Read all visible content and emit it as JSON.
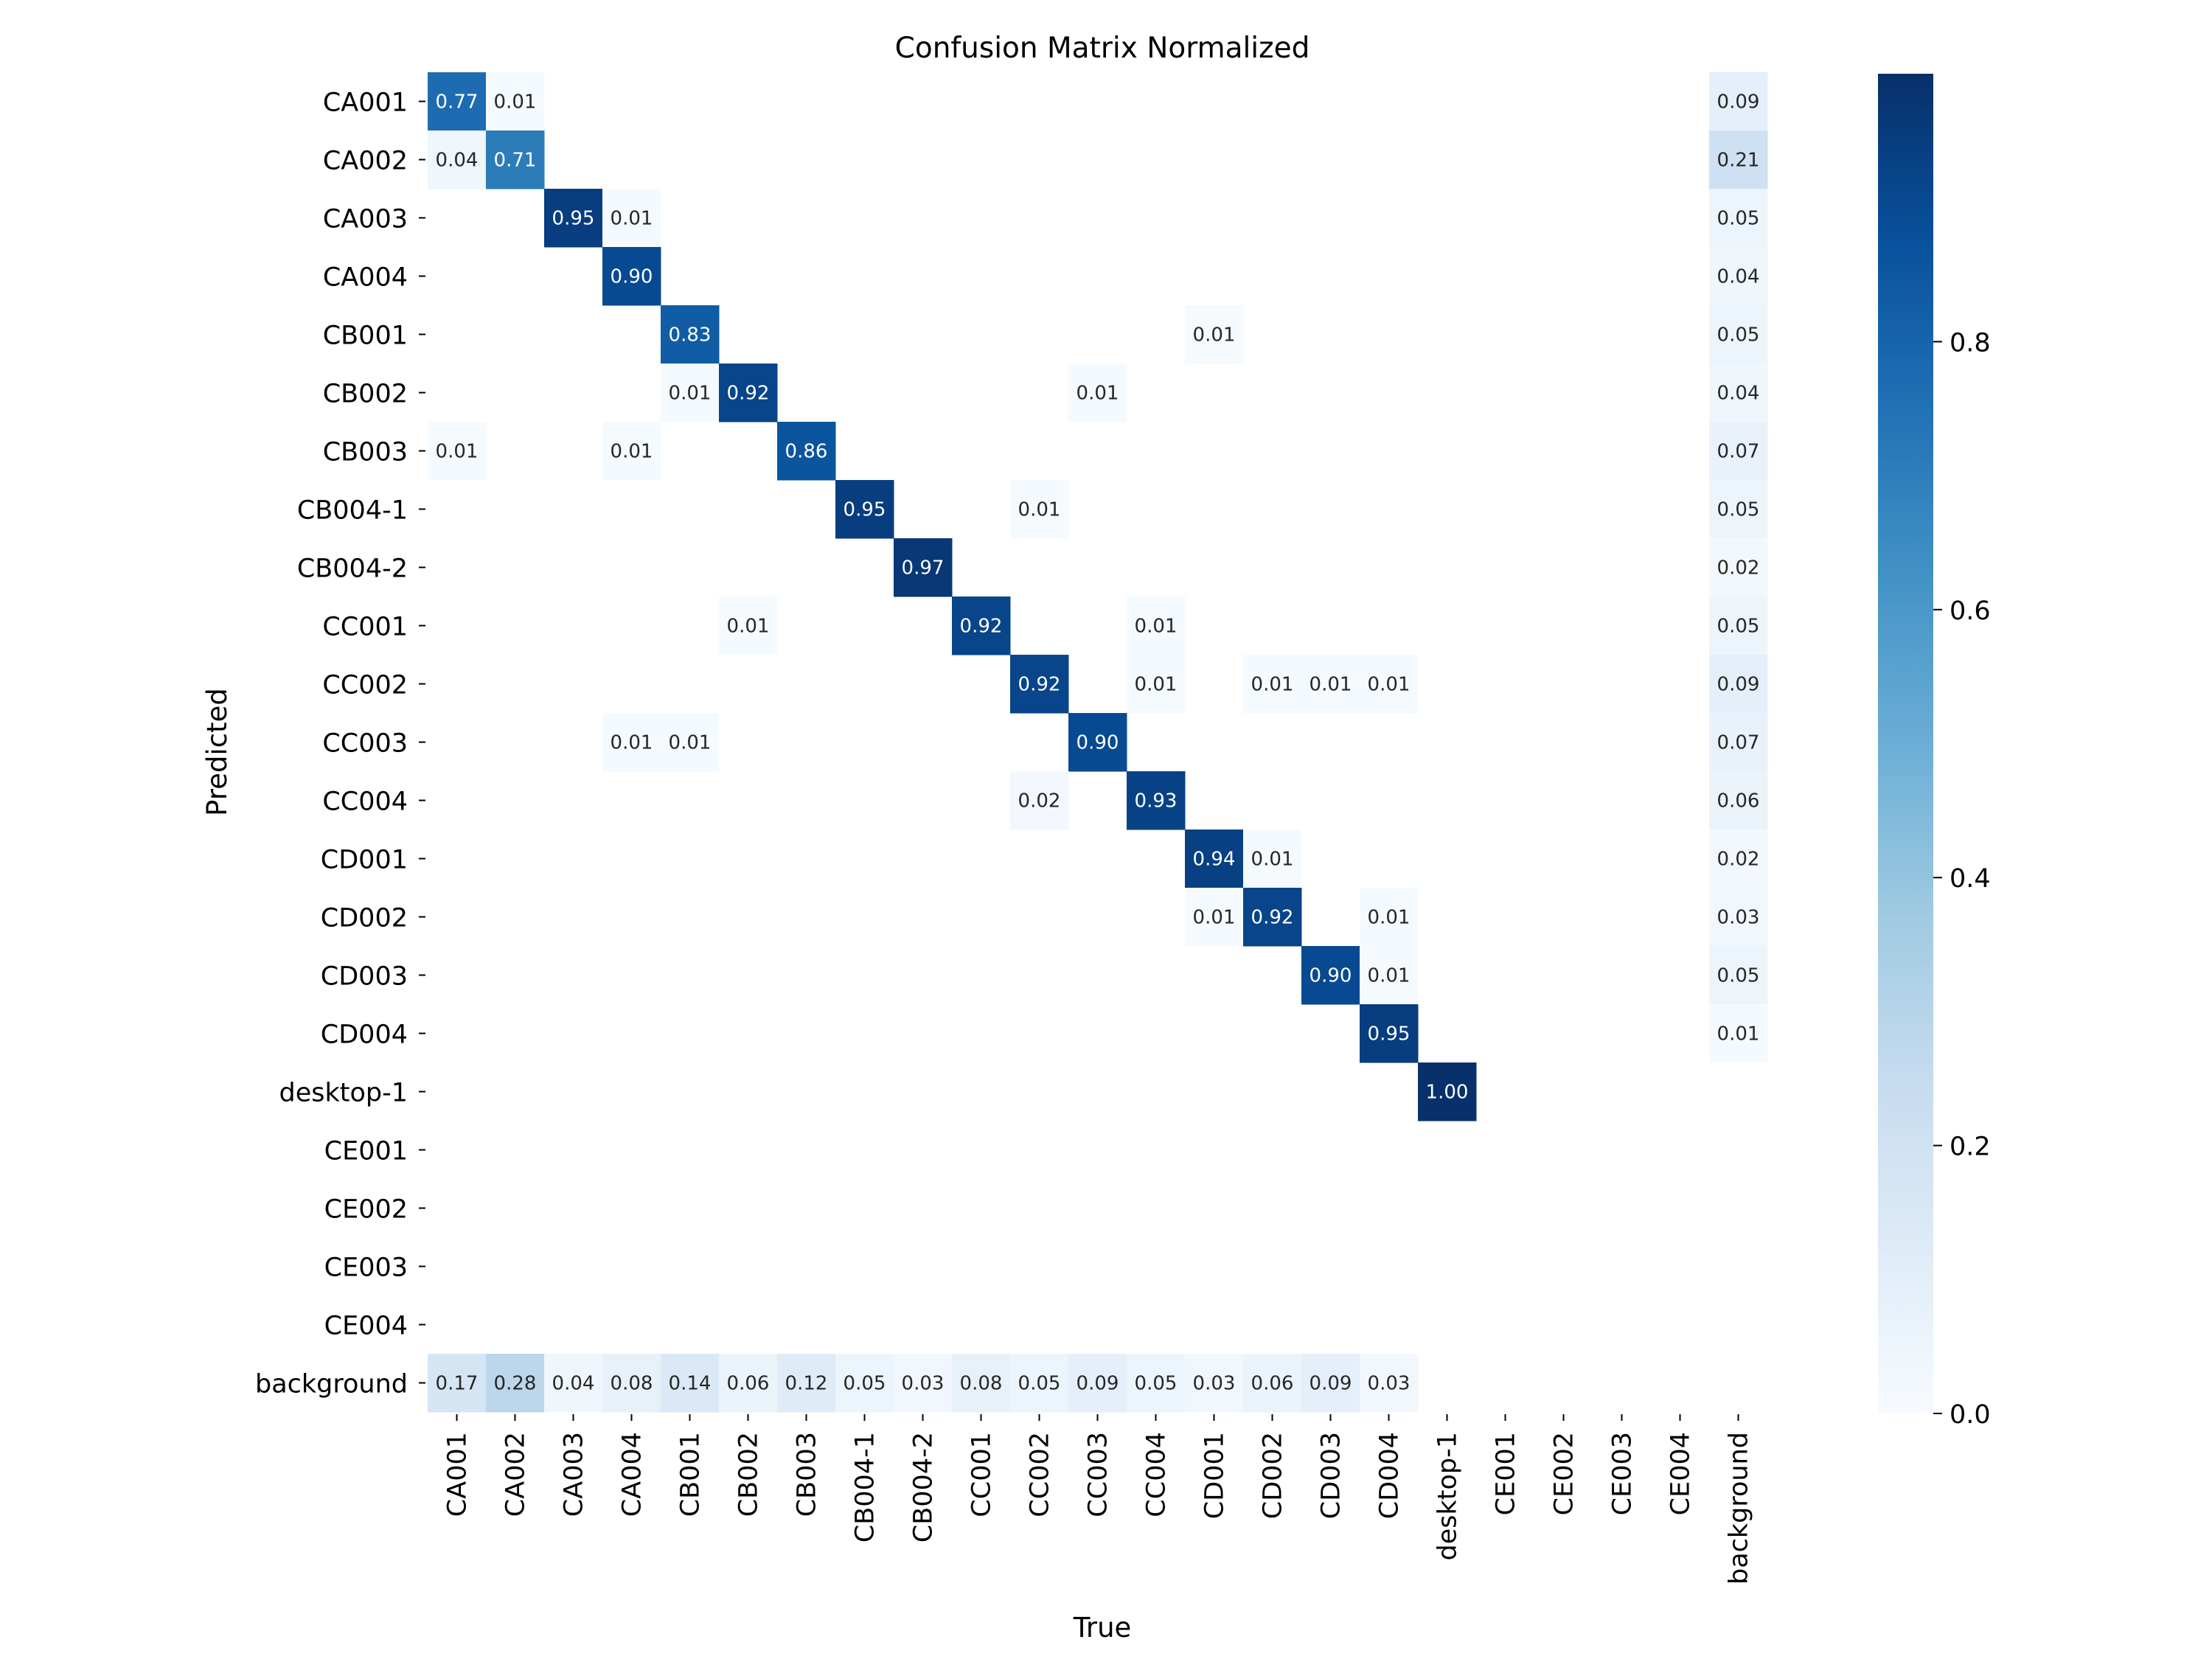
{
  "chart_data": {
    "type": "heatmap",
    "title": "Confusion Matrix Normalized",
    "xlabel": "True",
    "ylabel": "Predicted",
    "x_categories": [
      "CA001",
      "CA002",
      "CA003",
      "CA004",
      "CB001",
      "CB002",
      "CB003",
      "CB004-1",
      "CB004-2",
      "CC001",
      "CC002",
      "CC003",
      "CC004",
      "CD001",
      "CD002",
      "CD003",
      "CD004",
      "desktop-1",
      "CE001",
      "CE002",
      "CE003",
      "CE004",
      "background"
    ],
    "y_categories": [
      "CA001",
      "CA002",
      "CA003",
      "CA004",
      "CB001",
      "CB002",
      "CB003",
      "CB004-1",
      "CB004-2",
      "CC001",
      "CC002",
      "CC003",
      "CC004",
      "CD001",
      "CD002",
      "CD003",
      "CD004",
      "desktop-1",
      "CE001",
      "CE002",
      "CE003",
      "CE004",
      "background"
    ],
    "matrix": [
      [
        0.77,
        0.01,
        null,
        null,
        null,
        null,
        null,
        null,
        null,
        null,
        null,
        null,
        null,
        null,
        null,
        null,
        null,
        null,
        null,
        null,
        null,
        null,
        0.09
      ],
      [
        0.04,
        0.71,
        null,
        null,
        null,
        null,
        null,
        null,
        null,
        null,
        null,
        null,
        null,
        null,
        null,
        null,
        null,
        null,
        null,
        null,
        null,
        null,
        0.21
      ],
      [
        null,
        null,
        0.95,
        0.01,
        null,
        null,
        null,
        null,
        null,
        null,
        null,
        null,
        null,
        null,
        null,
        null,
        null,
        null,
        null,
        null,
        null,
        null,
        0.05
      ],
      [
        null,
        null,
        null,
        0.9,
        null,
        null,
        null,
        null,
        null,
        null,
        null,
        null,
        null,
        null,
        null,
        null,
        null,
        null,
        null,
        null,
        null,
        null,
        0.04
      ],
      [
        null,
        null,
        null,
        null,
        0.83,
        null,
        null,
        null,
        null,
        null,
        null,
        null,
        null,
        0.01,
        null,
        null,
        null,
        null,
        null,
        null,
        null,
        null,
        0.05
      ],
      [
        null,
        null,
        null,
        null,
        0.01,
        0.92,
        null,
        null,
        null,
        null,
        null,
        0.01,
        null,
        null,
        null,
        null,
        null,
        null,
        null,
        null,
        null,
        null,
        0.04
      ],
      [
        0.01,
        null,
        null,
        0.01,
        null,
        null,
        0.86,
        null,
        null,
        null,
        null,
        null,
        null,
        null,
        null,
        null,
        null,
        null,
        null,
        null,
        null,
        null,
        0.07
      ],
      [
        null,
        null,
        null,
        null,
        null,
        null,
        null,
        0.95,
        null,
        null,
        0.01,
        null,
        null,
        null,
        null,
        null,
        null,
        null,
        null,
        null,
        null,
        null,
        0.05
      ],
      [
        null,
        null,
        null,
        null,
        null,
        null,
        null,
        null,
        0.97,
        null,
        null,
        null,
        null,
        null,
        null,
        null,
        null,
        null,
        null,
        null,
        null,
        null,
        0.02
      ],
      [
        null,
        null,
        null,
        null,
        null,
        0.01,
        null,
        null,
        null,
        0.92,
        null,
        null,
        0.01,
        null,
        null,
        null,
        null,
        null,
        null,
        null,
        null,
        null,
        0.05
      ],
      [
        null,
        null,
        null,
        null,
        null,
        null,
        null,
        null,
        null,
        null,
        0.92,
        null,
        0.01,
        null,
        0.01,
        0.01,
        0.01,
        null,
        null,
        null,
        null,
        null,
        0.09
      ],
      [
        null,
        null,
        null,
        0.01,
        0.01,
        null,
        null,
        null,
        null,
        null,
        null,
        0.9,
        null,
        null,
        null,
        null,
        null,
        null,
        null,
        null,
        null,
        null,
        0.07
      ],
      [
        null,
        null,
        null,
        null,
        null,
        null,
        null,
        null,
        null,
        null,
        0.02,
        null,
        0.93,
        null,
        null,
        null,
        null,
        null,
        null,
        null,
        null,
        null,
        0.06
      ],
      [
        null,
        null,
        null,
        null,
        null,
        null,
        null,
        null,
        null,
        null,
        null,
        null,
        null,
        0.94,
        0.01,
        null,
        null,
        null,
        null,
        null,
        null,
        null,
        0.02
      ],
      [
        null,
        null,
        null,
        null,
        null,
        null,
        null,
        null,
        null,
        null,
        null,
        null,
        null,
        0.01,
        0.92,
        null,
        0.01,
        null,
        null,
        null,
        null,
        null,
        0.03
      ],
      [
        null,
        null,
        null,
        null,
        null,
        null,
        null,
        null,
        null,
        null,
        null,
        null,
        null,
        null,
        null,
        0.9,
        0.01,
        null,
        null,
        null,
        null,
        null,
        0.05
      ],
      [
        null,
        null,
        null,
        null,
        null,
        null,
        null,
        null,
        null,
        null,
        null,
        null,
        null,
        null,
        null,
        null,
        0.95,
        null,
        null,
        null,
        null,
        null,
        0.01
      ],
      [
        null,
        null,
        null,
        null,
        null,
        null,
        null,
        null,
        null,
        null,
        null,
        null,
        null,
        null,
        null,
        null,
        null,
        1.0,
        null,
        null,
        null,
        null,
        null
      ],
      [
        null,
        null,
        null,
        null,
        null,
        null,
        null,
        null,
        null,
        null,
        null,
        null,
        null,
        null,
        null,
        null,
        null,
        null,
        null,
        null,
        null,
        null,
        null
      ],
      [
        null,
        null,
        null,
        null,
        null,
        null,
        null,
        null,
        null,
        null,
        null,
        null,
        null,
        null,
        null,
        null,
        null,
        null,
        null,
        null,
        null,
        null,
        null
      ],
      [
        null,
        null,
        null,
        null,
        null,
        null,
        null,
        null,
        null,
        null,
        null,
        null,
        null,
        null,
        null,
        null,
        null,
        null,
        null,
        null,
        null,
        null,
        null
      ],
      [
        null,
        null,
        null,
        null,
        null,
        null,
        null,
        null,
        null,
        null,
        null,
        null,
        null,
        null,
        null,
        null,
        null,
        null,
        null,
        null,
        null,
        null,
        null
      ],
      [
        0.17,
        0.28,
        0.04,
        0.08,
        0.14,
        0.06,
        0.12,
        0.05,
        0.03,
        0.08,
        0.05,
        0.09,
        0.05,
        0.03,
        0.06,
        0.09,
        0.03,
        null,
        null,
        null,
        null,
        null,
        null
      ]
    ],
    "colorbar": {
      "min": 0,
      "max": 1,
      "ticks": [
        0.0,
        0.2,
        0.4,
        0.6,
        0.8
      ],
      "tick_labels": [
        "0.0",
        "0.2",
        "0.4",
        "0.6",
        "0.8"
      ],
      "colormap": "Blues",
      "colors": [
        "#f7fbff",
        "#deebf7",
        "#c6dbef",
        "#9ecae1",
        "#6baed6",
        "#4292c6",
        "#2171b5",
        "#08519c",
        "#08306b"
      ]
    }
  }
}
